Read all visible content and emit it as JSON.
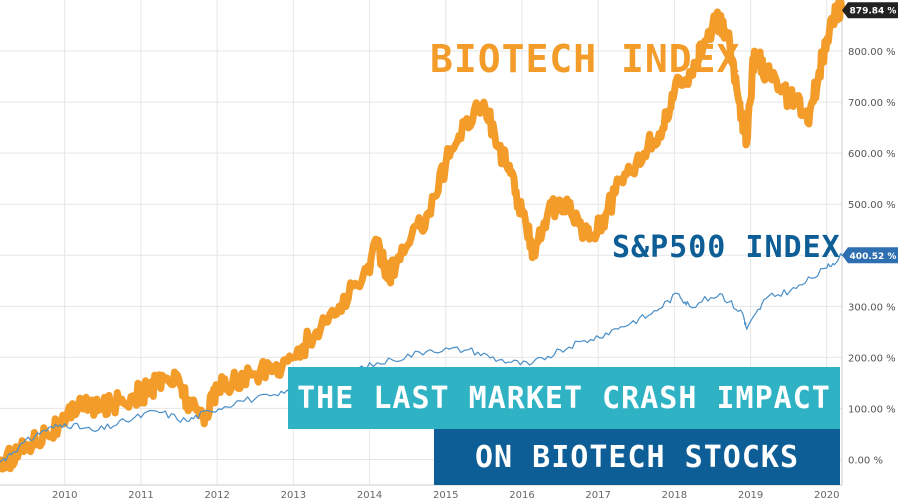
{
  "chart_data": {
    "type": "line",
    "title": "",
    "xlabel": "",
    "ylabel": "",
    "ylim": [
      -50,
      900
    ],
    "y_ticks": [
      "0.00 %",
      "100.00 %",
      "200.00 %",
      "300.00 %",
      "400.00 %",
      "500.00 %",
      "600.00 %",
      "700.00 %",
      "800.00 %"
    ],
    "y_tick_values": [
      0,
      100,
      200,
      300,
      400,
      500,
      600,
      700,
      800
    ],
    "x_ticks": [
      "2010",
      "2011",
      "2012",
      "2013",
      "2014",
      "2015",
      "2016",
      "2017",
      "2018",
      "2019",
      "2020"
    ],
    "x_tick_values": [
      2010,
      2011,
      2012,
      2013,
      2014,
      2015,
      2016,
      2017,
      2018,
      2019,
      2020
    ],
    "xlim": [
      2009.15,
      2020.2
    ],
    "series": [
      {
        "name": "BIOTECH INDEX",
        "color": "#f39c2a",
        "end_label": "879.84 %",
        "points": [
          [
            2009.15,
            -10
          ],
          [
            2009.3,
            5
          ],
          [
            2009.5,
            30
          ],
          [
            2009.75,
            55
          ],
          [
            2010.0,
            70
          ],
          [
            2010.2,
            120
          ],
          [
            2010.4,
            95
          ],
          [
            2010.6,
            110
          ],
          [
            2010.9,
            125
          ],
          [
            2011.1,
            135
          ],
          [
            2011.3,
            160
          ],
          [
            2011.5,
            155
          ],
          [
            2011.65,
            100
          ],
          [
            2011.85,
            90
          ],
          [
            2012.0,
            140
          ],
          [
            2012.2,
            150
          ],
          [
            2012.45,
            165
          ],
          [
            2012.75,
            180
          ],
          [
            2013.0,
            200
          ],
          [
            2013.3,
            250
          ],
          [
            2013.6,
            300
          ],
          [
            2013.9,
            350
          ],
          [
            2014.1,
            420
          ],
          [
            2014.25,
            360
          ],
          [
            2014.5,
            420
          ],
          [
            2014.75,
            480
          ],
          [
            2015.0,
            580
          ],
          [
            2015.25,
            660
          ],
          [
            2015.5,
            700
          ],
          [
            2015.7,
            610
          ],
          [
            2015.85,
            560
          ],
          [
            2016.0,
            480
          ],
          [
            2016.15,
            410
          ],
          [
            2016.35,
            490
          ],
          [
            2016.55,
            500
          ],
          [
            2016.75,
            460
          ],
          [
            2016.9,
            440
          ],
          [
            2017.1,
            480
          ],
          [
            2017.35,
            560
          ],
          [
            2017.6,
            600
          ],
          [
            2017.85,
            650
          ],
          [
            2018.0,
            720
          ],
          [
            2018.2,
            760
          ],
          [
            2018.4,
            820
          ],
          [
            2018.55,
            860
          ],
          [
            2018.7,
            830
          ],
          [
            2018.85,
            700
          ],
          [
            2018.95,
            620
          ],
          [
            2019.05,
            800
          ],
          [
            2019.2,
            760
          ],
          [
            2019.4,
            720
          ],
          [
            2019.6,
            700
          ],
          [
            2019.75,
            660
          ],
          [
            2019.9,
            760
          ],
          [
            2020.05,
            860
          ],
          [
            2020.2,
            880
          ]
        ]
      },
      {
        "name": "S&P500 INDEX",
        "color": "#4a8fc7",
        "end_label": "400.52 %",
        "points": [
          [
            2009.15,
            -5
          ],
          [
            2009.4,
            25
          ],
          [
            2009.7,
            55
          ],
          [
            2010.0,
            70
          ],
          [
            2010.4,
            55
          ],
          [
            2010.8,
            75
          ],
          [
            2011.2,
            95
          ],
          [
            2011.6,
            75
          ],
          [
            2011.9,
            95
          ],
          [
            2012.3,
            115
          ],
          [
            2012.8,
            125
          ],
          [
            2013.2,
            150
          ],
          [
            2013.8,
            175
          ],
          [
            2014.3,
            195
          ],
          [
            2014.8,
            215
          ],
          [
            2015.3,
            215
          ],
          [
            2015.7,
            195
          ],
          [
            2016.1,
            185
          ],
          [
            2016.5,
            215
          ],
          [
            2016.9,
            235
          ],
          [
            2017.3,
            260
          ],
          [
            2017.7,
            285
          ],
          [
            2018.05,
            325
          ],
          [
            2018.2,
            300
          ],
          [
            2018.6,
            325
          ],
          [
            2018.9,
            285
          ],
          [
            2018.95,
            255
          ],
          [
            2019.2,
            315
          ],
          [
            2019.6,
            335
          ],
          [
            2020.0,
            375
          ],
          [
            2020.2,
            400
          ]
        ]
      }
    ],
    "annotations": [
      "BIOTECH INDEX",
      "S&P500 INDEX"
    ]
  },
  "overlay": {
    "line1": "THE LAST MARKET CRASH IMPACT",
    "line2": "ON BIOTECH STOCKS"
  },
  "colors": {
    "grid": "#e6e6e6",
    "banner_top": "#2fb3c4",
    "banner_bottom": "#0d5d96",
    "end_tag_biotech": "#222222",
    "end_tag_sp": "#2d6fb0"
  }
}
